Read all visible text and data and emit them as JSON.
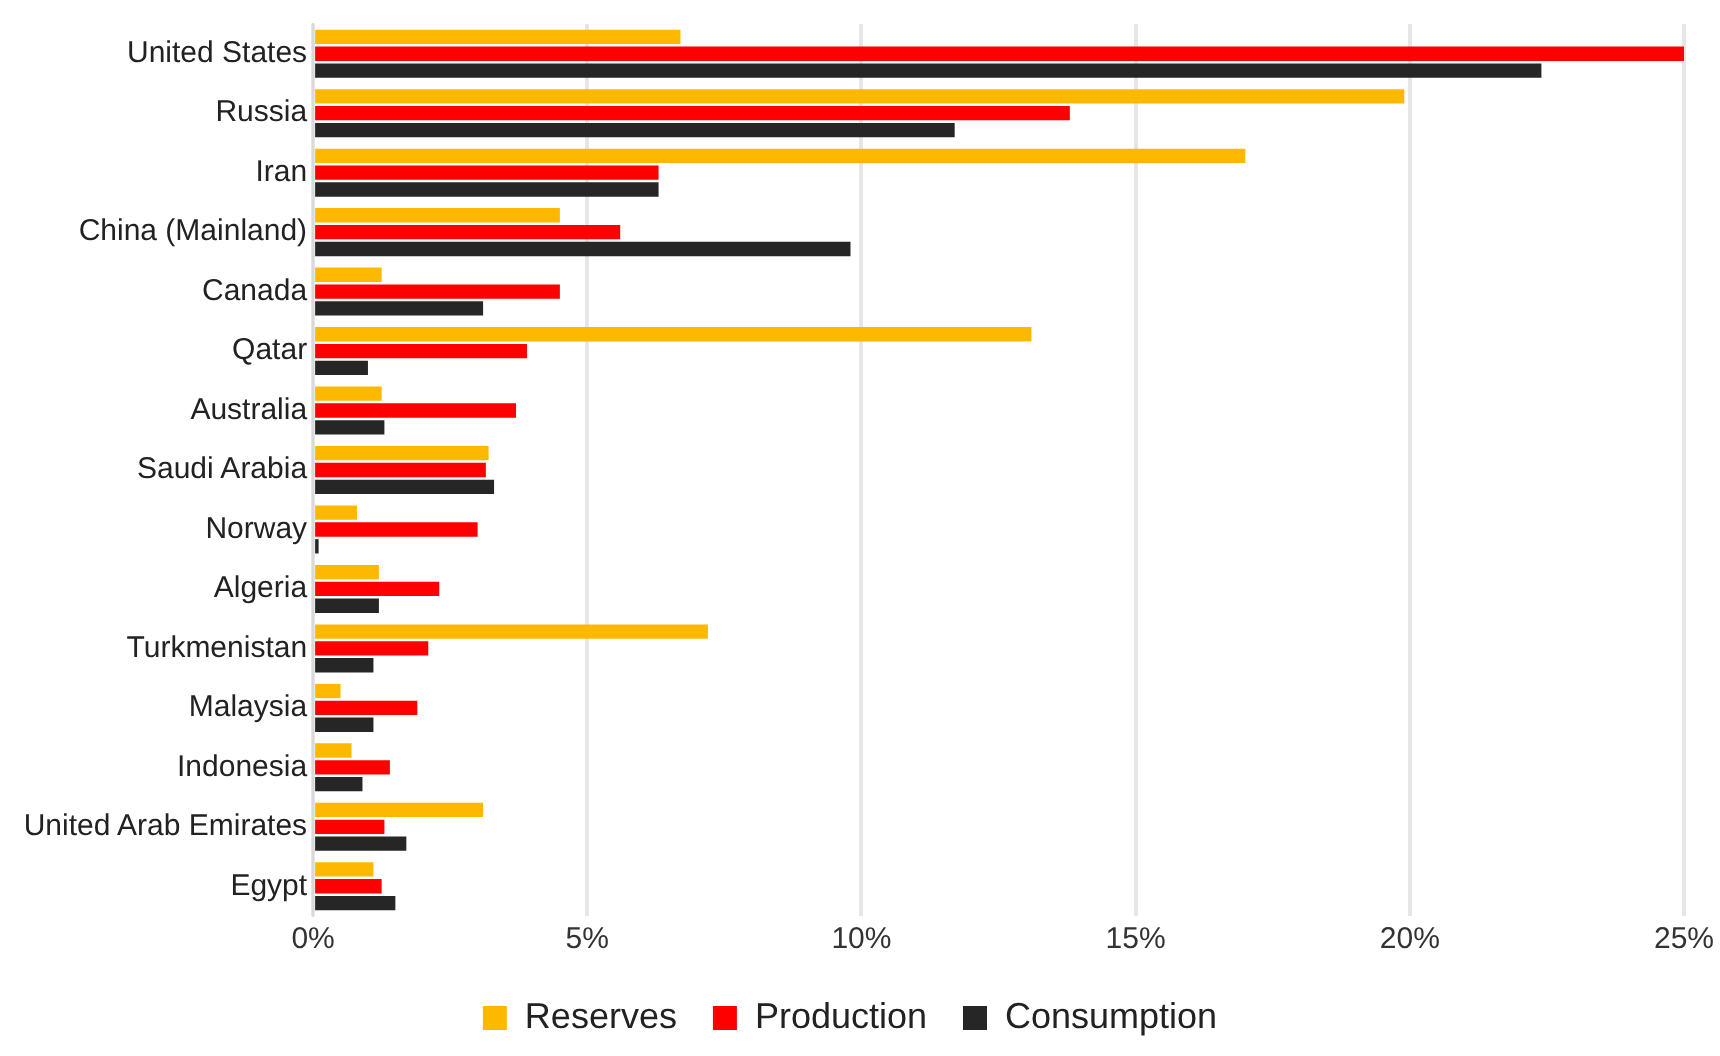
{
  "chart_data": {
    "type": "bar",
    "orientation": "horizontal",
    "categories": [
      "United States",
      "Russia",
      "Iran",
      "China (Mainland)",
      "Canada",
      "Qatar",
      "Australia",
      "Saudi Arabia",
      "Norway",
      "Algeria",
      "Turkmenistan",
      "Malaysia",
      "Indonesia",
      "United Arab Emirates",
      "Egypt"
    ],
    "series": [
      {
        "name": "Reserves",
        "color": "#ffb800",
        "values": [
          6.7,
          19.9,
          17.0,
          4.5,
          1.25,
          13.1,
          1.25,
          3.2,
          0.8,
          1.2,
          7.2,
          0.5,
          0.7,
          3.1,
          1.1
        ]
      },
      {
        "name": "Production",
        "color": "#ff0000",
        "values": [
          25.0,
          13.8,
          6.3,
          5.6,
          4.5,
          3.9,
          3.7,
          3.15,
          3.0,
          2.3,
          2.1,
          1.9,
          1.4,
          1.3,
          1.25
        ]
      },
      {
        "name": "Consumption",
        "color": "#262626",
        "values": [
          22.4,
          11.7,
          6.3,
          9.8,
          3.1,
          1.0,
          1.3,
          3.3,
          0.1,
          1.2,
          1.1,
          1.1,
          0.9,
          1.7,
          1.5
        ]
      }
    ],
    "xlim": [
      0,
      25
    ],
    "xticks": [
      {
        "value": 0,
        "label": "0%"
      },
      {
        "value": 5,
        "label": "5%"
      },
      {
        "value": 10,
        "label": "10%"
      },
      {
        "value": 15,
        "label": "15%"
      },
      {
        "value": 20,
        "label": "20%"
      },
      {
        "value": 25,
        "label": "25%"
      }
    ],
    "grid": "x",
    "legend": "bottom"
  }
}
